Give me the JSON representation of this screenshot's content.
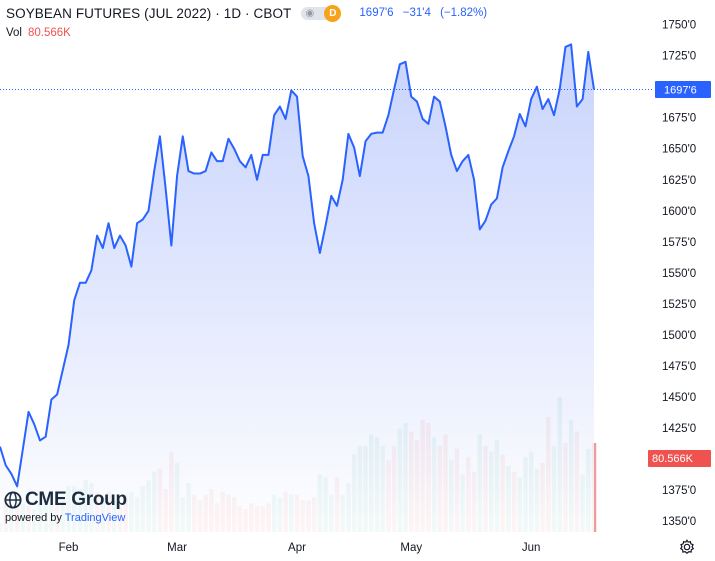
{
  "header": {
    "title": "SOYBEAN FUTURES (JUL 2022)",
    "interval": "1D",
    "exchange": "CBOT",
    "badge": "D",
    "last": "1697'6",
    "change": "−31'4",
    "change_pct": "(−1.82%)",
    "vol_label": "Vol",
    "vol_value": "80.566K"
  },
  "colors": {
    "line": "#2962ff",
    "area_top": "#b7c6fb",
    "area_bottom": "#ffffff",
    "vol_up": "#7fcbbb",
    "vol_down": "#f09a9a",
    "price_label_bg": "#2962ff",
    "vol_label_bg": "#ef5350",
    "badge": "#f7a21b"
  },
  "logo": {
    "brand": "CME Group",
    "powered_prefix": "powered by ",
    "powered_brand": "TradingView"
  },
  "icons": {
    "settings": "gear-icon",
    "visibility": "eye-icon"
  },
  "chart_data": {
    "type": "area",
    "title": "SOYBEAN FUTURES (JUL 2022)",
    "xlabel": "",
    "ylabel": "",
    "x_tick_labels": [
      "Feb",
      "Mar",
      "Apr",
      "May",
      "Jun"
    ],
    "x_tick_index": [
      12,
      31,
      52,
      72,
      93
    ],
    "y_tick_labels": [
      "1750'0",
      "1725'0",
      "1700'0",
      "1675'0",
      "1650'0",
      "1625'0",
      "1600'0",
      "1575'0",
      "1550'0",
      "1525'0",
      "1500'0",
      "1475'0",
      "1450'0",
      "1425'0",
      "1400'0",
      "1375'0",
      "1350'0"
    ],
    "ylim": [
      1348,
      1758
    ],
    "grid": false,
    "last_price_label": "1697'6",
    "last_price": 1697.75,
    "volume_label": "80.566K",
    "series": [
      {
        "name": "Price",
        "values": [
          1410,
          1395,
          1388,
          1378,
          1408,
          1438,
          1428,
          1415,
          1418,
          1448,
          1452,
          1472,
          1492,
          1528,
          1542,
          1542,
          1552,
          1580,
          1570,
          1590,
          1570,
          1580,
          1572,
          1555,
          1590,
          1593,
          1600,
          1632,
          1660,
          1618,
          1572,
          1628,
          1660,
          1632,
          1630,
          1630,
          1632,
          1647,
          1640,
          1640,
          1658,
          1650,
          1640,
          1635,
          1645,
          1625,
          1645,
          1645,
          1677,
          1684,
          1674,
          1697,
          1692,
          1644,
          1628,
          1590,
          1566,
          1588,
          1612,
          1604,
          1625,
          1662,
          1651,
          1628,
          1656,
          1662,
          1663,
          1663,
          1677,
          1698,
          1718,
          1720,
          1692,
          1688,
          1674,
          1670,
          1692,
          1688,
          1668,
          1645,
          1632,
          1640,
          1645,
          1625,
          1585,
          1592,
          1605,
          1610,
          1635,
          1648,
          1660,
          1678,
          1668,
          1690,
          1700,
          1682,
          1690,
          1677,
          1698,
          1732,
          1734,
          1684,
          1690,
          1728,
          1697.75
        ]
      },
      {
        "name": "Volume",
        "values": [
          3,
          12,
          9,
          9,
          10,
          9,
          8,
          10,
          11,
          10,
          12,
          11,
          16,
          16,
          15,
          18,
          17,
          14,
          12,
          14,
          11,
          9,
          13,
          14,
          12,
          16,
          18,
          21,
          22,
          15,
          28,
          24,
          12,
          17,
          13,
          11,
          13,
          15,
          10,
          14,
          13,
          12,
          9,
          8,
          10,
          9,
          9,
          10,
          13,
          12,
          14,
          13,
          13,
          11,
          11,
          12,
          20,
          19,
          13,
          19,
          13,
          17,
          27,
          30,
          30,
          34,
          33,
          30,
          25,
          30,
          36,
          38,
          35,
          32,
          39,
          38,
          33,
          30,
          34,
          25,
          29,
          20,
          26,
          21,
          34,
          30,
          28,
          32,
          27,
          23,
          21,
          19,
          26,
          28,
          22,
          24,
          40,
          30,
          47,
          31,
          39,
          35,
          20,
          29,
          31
        ]
      }
    ],
    "volume_direction": [
      1,
      0,
      1,
      0,
      1,
      0,
      1,
      1,
      1,
      1,
      0,
      1,
      1,
      1,
      1,
      1,
      1,
      0,
      1,
      0,
      1,
      0,
      0,
      1,
      1,
      1,
      1,
      1,
      0,
      0,
      0,
      1,
      1,
      1,
      0,
      0,
      0,
      0,
      0,
      0,
      0,
      0,
      0,
      0,
      0,
      0,
      0,
      0,
      1,
      1,
      0,
      1,
      0,
      0,
      0,
      0,
      1,
      1,
      1,
      0,
      1,
      1,
      1,
      1,
      1,
      1,
      1,
      1,
      0,
      0,
      1,
      1,
      0,
      0,
      0,
      0,
      1,
      0,
      0,
      1,
      0,
      1,
      0,
      0,
      1,
      0,
      1,
      1,
      0,
      1,
      0,
      1,
      1,
      1,
      1,
      0,
      0,
      1,
      1,
      0,
      1,
      0,
      1,
      1,
      0
    ]
  }
}
